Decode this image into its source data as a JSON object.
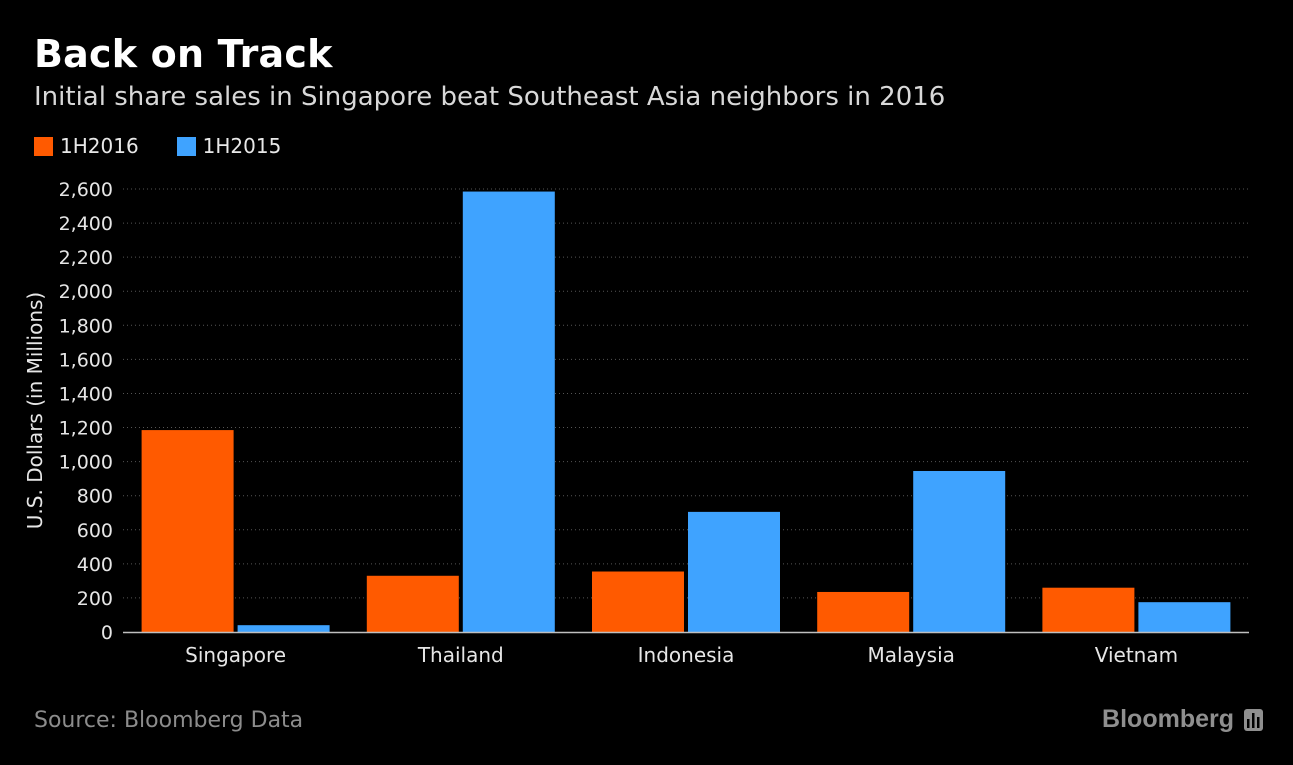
{
  "chart_data": {
    "type": "bar",
    "title": "Back on Track",
    "subtitle": "Initial share sales in Singapore beat Southeast Asia neighbors in 2016",
    "ylabel": "U.S. Dollars (in Millions)",
    "xlabel": "",
    "categories": [
      "Singapore",
      "Thailand",
      "Indonesia",
      "Malaysia",
      "Vietnam"
    ],
    "series": [
      {
        "name": "1H2016",
        "color": "#ff5a00",
        "values": [
          1185,
          330,
          355,
          235,
          260
        ]
      },
      {
        "name": "1H2015",
        "color": "#3fa3ff",
        "values": [
          40,
          2585,
          705,
          945,
          175
        ]
      }
    ],
    "ylim": [
      0,
      2600
    ],
    "yticks": [
      0,
      200,
      400,
      600,
      800,
      1000,
      1200,
      1400,
      1600,
      1800,
      2000,
      2200,
      2400,
      2600
    ],
    "ytick_labels": [
      "0",
      "200",
      "400",
      "600",
      "800",
      "1,000",
      "1,200",
      "1,400",
      "1,600",
      "1,800",
      "2,000",
      "2,200",
      "2,400",
      "2,600"
    ],
    "grid": true,
    "legend": "top-left"
  },
  "footer": {
    "source": "Source: Bloomberg Data",
    "brand": "Bloomberg"
  },
  "colors": {
    "background": "#000000",
    "axis": "#bfbfbf",
    "grid": "#555555",
    "brand": "#8f8f8f"
  },
  "icons": {
    "brand_icon": "bar-chart-icon"
  }
}
